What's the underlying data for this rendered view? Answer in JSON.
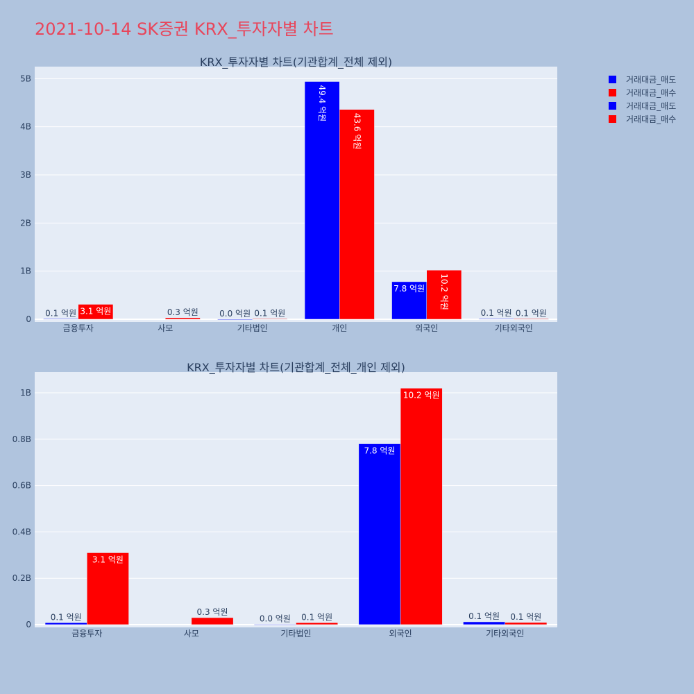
{
  "title": "2021-10-14 SK증권 KRX_투자자별 차트",
  "colors": {
    "title": "#e8455a",
    "background": "#b0c4de",
    "plot_bg": "#e5ecf6",
    "grid": "#ffffff",
    "text": "#2a3f5f",
    "sell": "#0000ff",
    "buy": "#ff0000"
  },
  "legend": {
    "placement": "top-right",
    "items": [
      {
        "label": "거래대금_매도",
        "color": "#0000ff"
      },
      {
        "label": "거래대금_매수",
        "color": "#ff0000"
      },
      {
        "label": "거래대금_매도",
        "color": "#0000ff"
      },
      {
        "label": "거래대금_매수",
        "color": "#ff0000"
      }
    ]
  },
  "chart_data": [
    {
      "type": "bar",
      "title": "KRX_투자자별 차트(기관합계_전체 제외)",
      "categories": [
        "금융투자",
        "사모",
        "기타법인",
        "개인",
        "외국인",
        "기타외국인"
      ],
      "series": [
        {
          "name": "거래대금_매도",
          "color": "#0000ff",
          "values": [
            8000000,
            0,
            1000000,
            4940000000,
            780000000,
            12000000
          ],
          "labels": [
            "0.1 억원",
            "",
            "0.0 억원",
            "49.4 억원",
            "7.8 억원",
            "0.1 억원"
          ]
        },
        {
          "name": "거래대금_매수",
          "color": "#ff0000",
          "values": [
            310000000,
            30000000,
            8000000,
            4360000000,
            1020000000,
            9000000
          ],
          "labels": [
            "3.1 억원",
            "0.3 억원",
            "0.1 억원",
            "43.6 억원",
            "10.2 억원",
            "0.1 억원"
          ]
        }
      ],
      "ylim": [
        0,
        5250000000
      ],
      "yticks": [
        0,
        1000000000,
        2000000000,
        3000000000,
        4000000000,
        5000000000
      ],
      "ytick_labels": [
        "0",
        "1B",
        "2B",
        "3B",
        "4B",
        "5B"
      ],
      "grid": true
    },
    {
      "type": "bar",
      "title": "KRX_투자자별 차트(기관합계_전체_개인 제외)",
      "categories": [
        "금융투자",
        "사모",
        "기타법인",
        "외국인",
        "기타외국인"
      ],
      "series": [
        {
          "name": "거래대금_매도",
          "color": "#0000ff",
          "values": [
            8000000,
            0,
            1000000,
            780000000,
            12000000
          ],
          "labels": [
            "0.1 억원",
            "",
            "0.0 억원",
            "7.8 억원",
            "0.1 억원"
          ]
        },
        {
          "name": "거래대금_매수",
          "color": "#ff0000",
          "values": [
            310000000,
            30000000,
            8000000,
            1020000000,
            9000000
          ],
          "labels": [
            "3.1 억원",
            "0.3 억원",
            "0.1 억원",
            "10.2 억원",
            "0.1 억원"
          ]
        }
      ],
      "ylim": [
        0,
        1090000000
      ],
      "yticks": [
        0,
        200000000,
        400000000,
        600000000,
        800000000,
        1000000000
      ],
      "ytick_labels": [
        "0",
        "0.2B",
        "0.4B",
        "0.6B",
        "0.8B",
        "1B"
      ],
      "grid": true
    }
  ]
}
